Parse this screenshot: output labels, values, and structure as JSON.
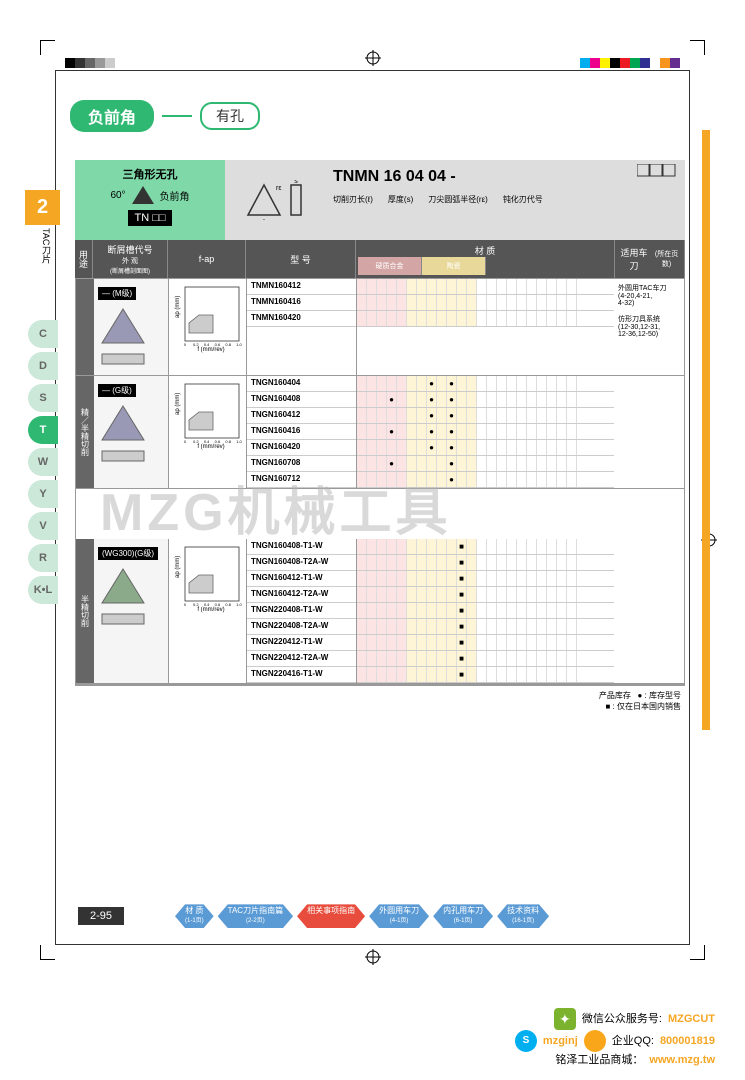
{
  "header": {
    "pill_green": "负前角",
    "pill_white": "有孔"
  },
  "section_num": "2",
  "tac_label": "TAC刀片",
  "side_tabs": [
    "C",
    "D",
    "S",
    "T",
    "W",
    "Y",
    "V",
    "R",
    "K•L"
  ],
  "active_tab": "T",
  "spec": {
    "shape_title": "三角形无孔",
    "angle": "60°",
    "angle_label": "负前角",
    "code_prefix": "TN",
    "product_code": "TNMN 16 04 04 -",
    "param_labels": [
      "切削刃长(ℓ)",
      "厚度(s)",
      "刀尖圆弧半径(rε)",
      "钝化刃代号"
    ]
  },
  "table_headers": {
    "use": "用途",
    "chip_top": "断屑槽代号",
    "chip_sub1": "外 观",
    "chip_sub2": "(断屑槽剖面图)",
    "fap": "f-ap",
    "model": "型 号",
    "material": "材 质",
    "mat_sub": [
      "硬质合金",
      "陶瓷"
    ],
    "tool": "适用车刀",
    "tool_sub": "(所在页数)"
  },
  "sections": [
    {
      "use": "",
      "chip_label": "— (M级)",
      "shape_color": "#9999b5",
      "models": [
        "TNMN160412",
        "TNMN160416",
        "TNMN160420"
      ],
      "dots": [
        [],
        [],
        []
      ],
      "tool_text": "外圆用TAC车刀\n(4-20,4-21,\n4-32)\n\n仿形刀具系统\n(12-30,12-31,\n12-36,12-50)"
    },
    {
      "use": "精／半精切削",
      "chip_label": "— (G级)",
      "shape_color": "#9999b5",
      "models": [
        "TNGN160404",
        "TNGN160408",
        "TNGN160412",
        "TNGN160416",
        "TNGN160420",
        "TNGN160708",
        "TNGN160712"
      ],
      "dots": [
        [
          7,
          9
        ],
        [
          3,
          7,
          9
        ],
        [
          7,
          9
        ],
        [
          3,
          7,
          9
        ],
        [
          7,
          9
        ],
        [
          3,
          9
        ],
        [
          9
        ]
      ],
      "tool_text": ""
    },
    {
      "use": "半精切削",
      "chip_label": "(WG300)(G级)",
      "shape_color": "#8aaa8a",
      "models": [
        "TNGN160408-T1-W",
        "TNGN160408-T2A-W",
        "TNGN160412-T1-W",
        "TNGN160412-T2A-W",
        "TNGN220408-T1-W",
        "TNGN220408-T2A-W",
        "TNGN220412-T1-W",
        "TNGN220412-T2A-W",
        "TNGN220416-T1-W"
      ],
      "dots": [
        [
          10
        ],
        [
          10
        ],
        [
          10
        ],
        [
          10
        ],
        [
          10
        ],
        [
          10
        ],
        [
          10
        ],
        [
          10
        ],
        [
          10
        ]
      ],
      "square_dots": true,
      "tool_text": ""
    }
  ],
  "legend": {
    "stock": "产品库存",
    "dot": "● : 库存型号",
    "square": "■ : 仅在日本国内销售"
  },
  "page_num": "2-95",
  "nav": [
    {
      "label": "材 质",
      "sub": "(1-1页)",
      "color": "#5b9bd5"
    },
    {
      "label": "TAC刀片指南篇",
      "sub": "(2-2页)",
      "color": "#5b9bd5"
    },
    {
      "label": "相关事项指南",
      "sub": "",
      "color": "#e74c3c"
    },
    {
      "label": "外圆用车刀",
      "sub": "(4-1页)",
      "color": "#5b9bd5"
    },
    {
      "label": "内孔用车刀",
      "sub": "(6-1页)",
      "color": "#5b9bd5"
    },
    {
      "label": "技术资料",
      "sub": "(16-1页)",
      "color": "#5b9bd5"
    }
  ],
  "footer": {
    "wechat_label": "微信公众服务号:",
    "wechat_id": "MZGCUT",
    "skype_id": "mzginj",
    "qq_label": "企业QQ:",
    "qq_id": "800001819",
    "shop_label": "铭泽工业品商城：",
    "shop_url": "www.mzg.tw"
  },
  "watermark": "MZG机械工具",
  "color_bar_left": [
    "#000",
    "#333",
    "#666",
    "#999",
    "#ccc"
  ],
  "color_bar_right": [
    "#00aeef",
    "#ec008c",
    "#fff200",
    "#000",
    "#ed1c24",
    "#00a651",
    "#2e3192",
    "#fff",
    "#f7941d",
    "#662d91"
  ],
  "chart": {
    "x_ticks": [
      "0",
      "0.2",
      "0.4",
      "0.6",
      "0.8",
      "1.0"
    ],
    "y_max": "1.0",
    "xlabel": "f (mm/rev)",
    "ylabel": "ap (mm)"
  }
}
